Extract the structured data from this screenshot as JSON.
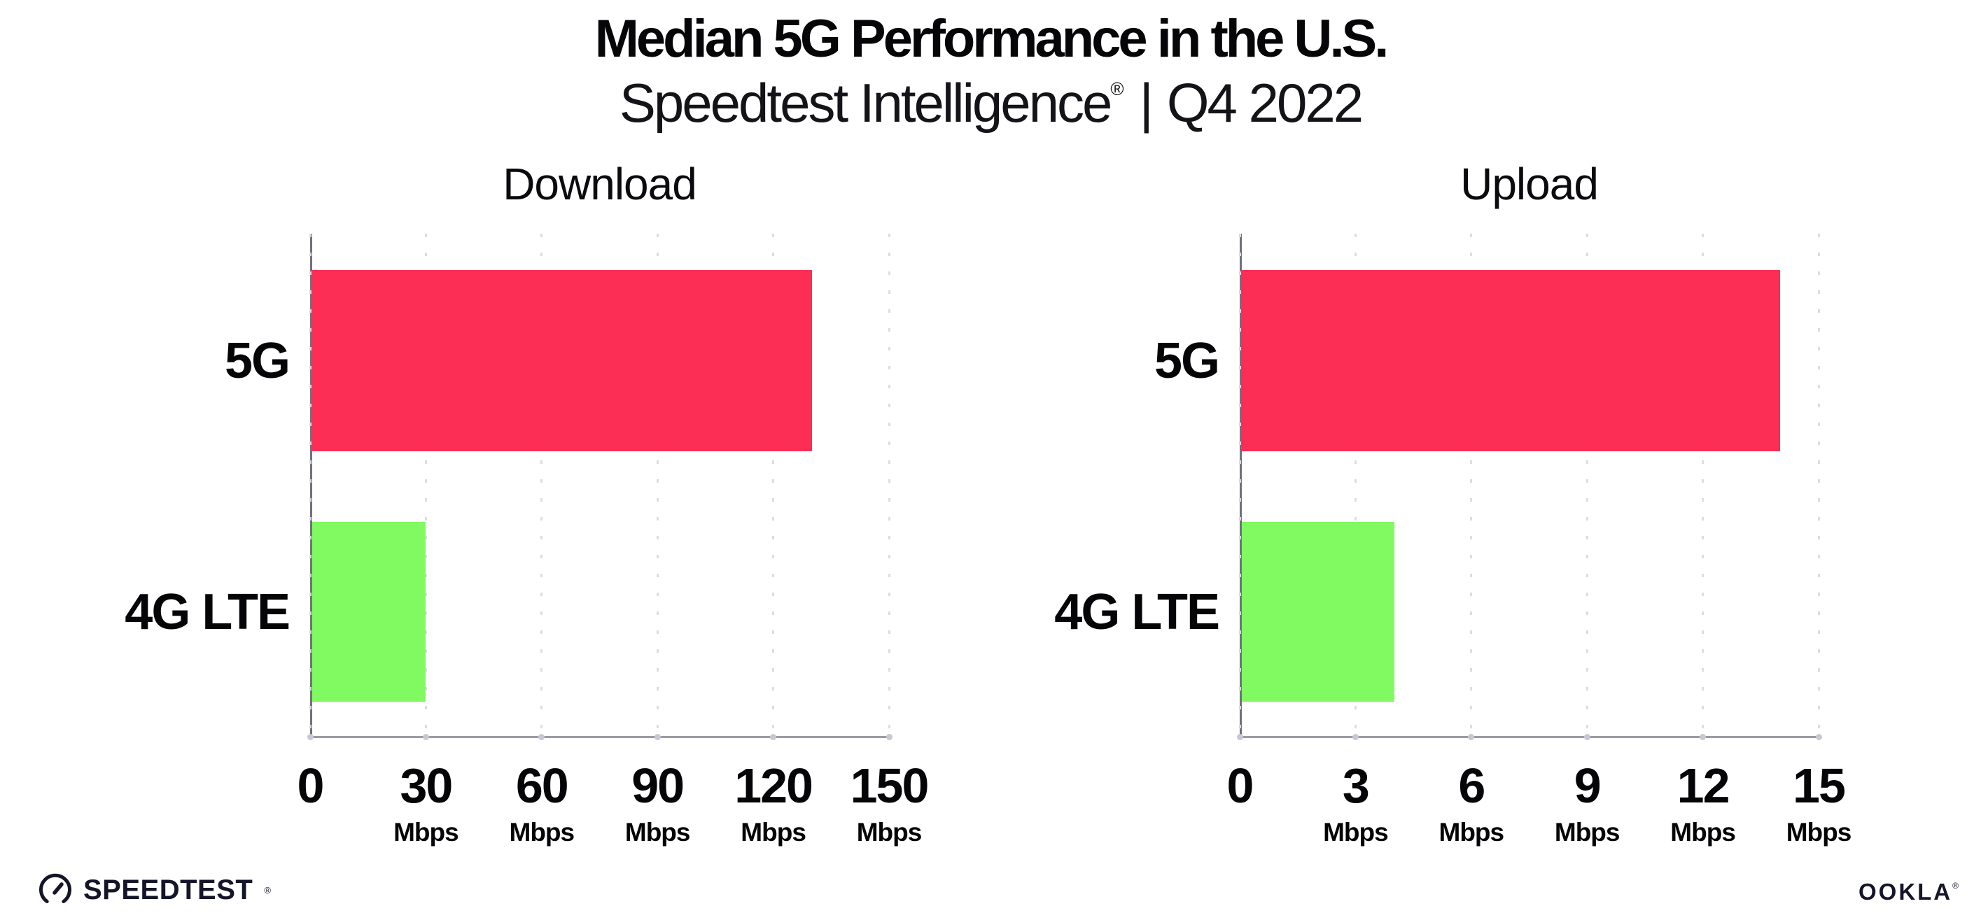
{
  "header": {
    "title": "Median 5G Performance in the U.S.",
    "subtitle": {
      "brand": "Speedtest Intelligence",
      "registered_mark": "®",
      "separator": "|",
      "period": "Q4 2022"
    }
  },
  "footer": {
    "speedtest_logo_text": "SPEEDTEST",
    "speedtest_registered_mark": "®",
    "speedtest_icon": "speedometer-gauge-icon",
    "ookla_logo_text": "OOKLA",
    "ookla_registered_mark": "®"
  },
  "colors": {
    "bar_5g": "#FC2E56",
    "bar_4g_lte": "#81FA62",
    "gridline": "#DCDCE8",
    "y_axis": "#71717A",
    "x_axis": "#9C9CA4",
    "text": "#060608"
  },
  "chart_data": [
    {
      "type": "bar",
      "orientation": "horizontal",
      "title": "Download",
      "categories": [
        "5G",
        "4G LTE"
      ],
      "values": [
        130,
        30
      ],
      "unit": "Mbps",
      "xlim": [
        0,
        150
      ],
      "xticks": [
        0,
        30,
        60,
        90,
        120,
        150
      ],
      "tick_unit_label": "Mbps",
      "bar_colors": [
        "#FC2E56",
        "#81FA62"
      ],
      "grid": "dotted vertical gridlines at each tick",
      "legend": "none"
    },
    {
      "type": "bar",
      "orientation": "horizontal",
      "title": "Upload",
      "categories": [
        "5G",
        "4G LTE"
      ],
      "values": [
        14,
        4
      ],
      "unit": "Mbps",
      "xlim": [
        0,
        15
      ],
      "xticks": [
        0,
        3,
        6,
        9,
        12,
        15
      ],
      "tick_unit_label": "Mbps",
      "bar_colors": [
        "#FC2E56",
        "#81FA62"
      ],
      "grid": "dotted vertical gridlines at each tick",
      "legend": "none"
    }
  ]
}
